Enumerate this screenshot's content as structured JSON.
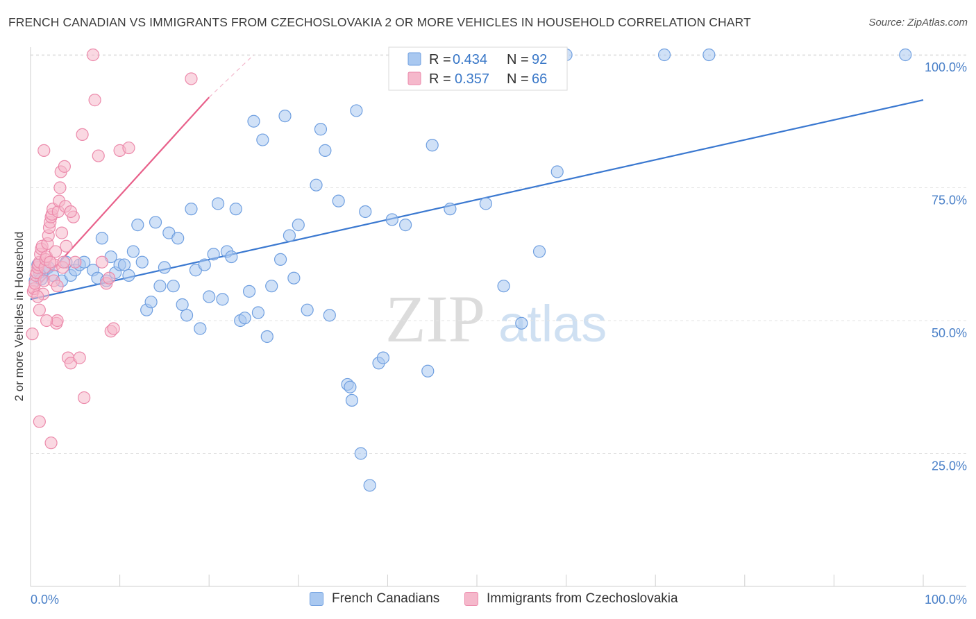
{
  "header": {
    "title": "FRENCH CANADIAN VS IMMIGRANTS FROM CZECHOSLOVAKIA 2 OR MORE VEHICLES IN HOUSEHOLD CORRELATION CHART",
    "source": "Source: ZipAtlas.com"
  },
  "watermark": {
    "zip": "ZIP",
    "atlas": "atlas"
  },
  "legend": {
    "row1": {
      "r_label": "R = ",
      "r_value": "0.434",
      "n_label": "N = ",
      "n_value": "92"
    },
    "row2": {
      "r_label": "R = ",
      "r_value": "0.357",
      "n_label": "N = ",
      "n_value": "66"
    }
  },
  "bottom_legend": {
    "item1": "French Canadians",
    "item2": "Immigrants from Czechoslovakia"
  },
  "colors": {
    "blue_fill": "#a9c8f0",
    "blue_stroke": "#6f9fe0",
    "blue_line": "#3a78d0",
    "pink_fill": "#f5b8cb",
    "pink_stroke": "#ec8aab",
    "pink_line": "#e8608a",
    "tick_text": "#4a80c8"
  },
  "chart_data": {
    "type": "scatter",
    "title": "FRENCH CANADIAN VS IMMIGRANTS FROM CZECHOSLOVAKIA 2 OR MORE VEHICLES IN HOUSEHOLD CORRELATION CHART",
    "xlabel": "",
    "ylabel": "2 or more Vehicles in Household",
    "xlim": [
      0,
      100
    ],
    "ylim": [
      0,
      100
    ],
    "x_tick_labels": [
      "0.0%",
      "100.0%"
    ],
    "y_ticks": [
      25,
      50,
      75,
      100
    ],
    "y_tick_labels": [
      "25.0%",
      "50.0%",
      "75.0%",
      "100.0%"
    ],
    "grid": true,
    "legend_position": "top-center",
    "series": [
      {
        "name": "French Canadians",
        "color": "#a9c8f0",
        "R": 0.434,
        "N": 92,
        "trend": {
          "x": [
            0,
            100
          ],
          "y": [
            54.0,
            91.5
          ]
        },
        "points": [
          [
            0.5,
            57.5
          ],
          [
            0.8,
            60.5
          ],
          [
            1.0,
            59.0
          ],
          [
            1.2,
            57.8
          ],
          [
            1.5,
            59.5
          ],
          [
            2.0,
            60.0
          ],
          [
            2.5,
            58.5
          ],
          [
            3.5,
            57.5
          ],
          [
            4.0,
            61.0
          ],
          [
            4.5,
            58.5
          ],
          [
            5.0,
            59.5
          ],
          [
            5.5,
            60.5
          ],
          [
            6.0,
            61.0
          ],
          [
            7.0,
            59.5
          ],
          [
            7.5,
            58.0
          ],
          [
            8.0,
            65.5
          ],
          [
            8.5,
            57.5
          ],
          [
            9.0,
            62.0
          ],
          [
            9.5,
            59.0
          ],
          [
            10.0,
            60.5
          ],
          [
            10.5,
            60.5
          ],
          [
            11.0,
            58.5
          ],
          [
            11.5,
            63.0
          ],
          [
            12.0,
            68.0
          ],
          [
            12.5,
            61.0
          ],
          [
            13.0,
            52.0
          ],
          [
            13.5,
            53.5
          ],
          [
            14.0,
            68.5
          ],
          [
            14.5,
            56.5
          ],
          [
            15.0,
            60.0
          ],
          [
            15.5,
            66.5
          ],
          [
            16.0,
            56.5
          ],
          [
            16.5,
            65.5
          ],
          [
            17.0,
            53.0
          ],
          [
            17.5,
            51.0
          ],
          [
            18.0,
            71.0
          ],
          [
            18.5,
            59.5
          ],
          [
            19.0,
            48.5
          ],
          [
            19.5,
            60.5
          ],
          [
            20.0,
            54.5
          ],
          [
            20.5,
            62.5
          ],
          [
            21.0,
            72.0
          ],
          [
            21.5,
            54.0
          ],
          [
            22.0,
            63.0
          ],
          [
            22.5,
            62.0
          ],
          [
            23.0,
            71.0
          ],
          [
            23.5,
            50.0
          ],
          [
            24.0,
            50.5
          ],
          [
            24.5,
            55.5
          ],
          [
            25.0,
            87.5
          ],
          [
            25.5,
            51.5
          ],
          [
            26.0,
            84.0
          ],
          [
            26.5,
            47.0
          ],
          [
            27.0,
            56.5
          ],
          [
            28.0,
            61.5
          ],
          [
            28.5,
            88.5
          ],
          [
            29.0,
            66.0
          ],
          [
            29.5,
            58.0
          ],
          [
            30.0,
            68.0
          ],
          [
            31.0,
            52.0
          ],
          [
            32.0,
            75.5
          ],
          [
            32.5,
            86.0
          ],
          [
            33.0,
            82.0
          ],
          [
            33.5,
            51.0
          ],
          [
            34.5,
            72.5
          ],
          [
            35.5,
            38.0
          ],
          [
            35.8,
            37.5
          ],
          [
            36.0,
            35.0
          ],
          [
            36.5,
            89.5
          ],
          [
            37.0,
            25.0
          ],
          [
            37.5,
            70.5
          ],
          [
            38.0,
            19.0
          ],
          [
            39.0,
            42.0
          ],
          [
            39.5,
            43.0
          ],
          [
            40.5,
            69.0
          ],
          [
            42.0,
            68.0
          ],
          [
            44.5,
            40.5
          ],
          [
            45.0,
            83.0
          ],
          [
            47.0,
            71.0
          ],
          [
            48.0,
            100.0
          ],
          [
            50.5,
            99.5
          ],
          [
            51.0,
            72.0
          ],
          [
            53.0,
            56.5
          ],
          [
            55.0,
            49.5
          ],
          [
            57.0,
            63.0
          ],
          [
            58.5,
            100.0
          ],
          [
            59.0,
            78.0
          ],
          [
            60.0,
            100.0
          ],
          [
            71.0,
            100.0
          ],
          [
            76.0,
            100.0
          ],
          [
            98.0,
            100.0
          ],
          [
            47.5,
            100.0
          ]
        ]
      },
      {
        "name": "Immigrants from Czechoslovakia",
        "color": "#f5b8cb",
        "R": 0.357,
        "N": 66,
        "trend": {
          "x": [
            0,
            20
          ],
          "y": [
            55.0,
            92.0
          ]
        },
        "trend_dashed": {
          "x": [
            20,
            25
          ],
          "y": [
            92.0,
            100.0
          ]
        },
        "points": [
          [
            0.2,
            47.5
          ],
          [
            0.3,
            55.5
          ],
          [
            0.4,
            56.0
          ],
          [
            0.5,
            57.0
          ],
          [
            0.6,
            58.5
          ],
          [
            0.7,
            59.0
          ],
          [
            0.8,
            60.0
          ],
          [
            0.9,
            60.5
          ],
          [
            1.0,
            61.0
          ],
          [
            1.0,
            52.0
          ],
          [
            1.1,
            62.5
          ],
          [
            1.2,
            63.5
          ],
          [
            1.3,
            64.0
          ],
          [
            1.4,
            55.0
          ],
          [
            1.5,
            57.5
          ],
          [
            1.6,
            60.0
          ],
          [
            1.7,
            61.5
          ],
          [
            1.8,
            62.0
          ],
          [
            1.9,
            64.5
          ],
          [
            2.0,
            66.0
          ],
          [
            2.1,
            67.5
          ],
          [
            2.2,
            68.5
          ],
          [
            2.3,
            69.5
          ],
          [
            2.4,
            70.0
          ],
          [
            2.5,
            71.0
          ],
          [
            2.6,
            57.5
          ],
          [
            2.7,
            60.5
          ],
          [
            2.8,
            63.0
          ],
          [
            2.9,
            49.5
          ],
          [
            3.0,
            50.0
          ],
          [
            3.1,
            70.5
          ],
          [
            3.2,
            72.5
          ],
          [
            3.3,
            75.0
          ],
          [
            3.4,
            78.0
          ],
          [
            3.5,
            66.5
          ],
          [
            3.6,
            60.0
          ],
          [
            3.7,
            61.0
          ],
          [
            3.8,
            79.0
          ],
          [
            3.9,
            71.5
          ],
          [
            4.0,
            64.0
          ],
          [
            4.2,
            43.0
          ],
          [
            4.5,
            42.0
          ],
          [
            4.8,
            69.5
          ],
          [
            5.0,
            61.0
          ],
          [
            5.5,
            43.0
          ],
          [
            5.8,
            85.0
          ],
          [
            6.0,
            35.5
          ],
          [
            7.0,
            100.0
          ],
          [
            7.2,
            91.5
          ],
          [
            7.6,
            81.0
          ],
          [
            8.0,
            61.0
          ],
          [
            8.5,
            57.0
          ],
          [
            8.8,
            58.0
          ],
          [
            9.0,
            48.0
          ],
          [
            9.3,
            48.5
          ],
          [
            10.0,
            82.0
          ],
          [
            11.0,
            82.5
          ],
          [
            1.0,
            31.0
          ],
          [
            2.3,
            27.0
          ],
          [
            1.5,
            82.0
          ],
          [
            1.8,
            50.0
          ],
          [
            2.2,
            61.0
          ],
          [
            0.8,
            54.5
          ],
          [
            3.0,
            56.5
          ],
          [
            18.0,
            95.5
          ],
          [
            4.5,
            70.5
          ]
        ]
      }
    ]
  }
}
